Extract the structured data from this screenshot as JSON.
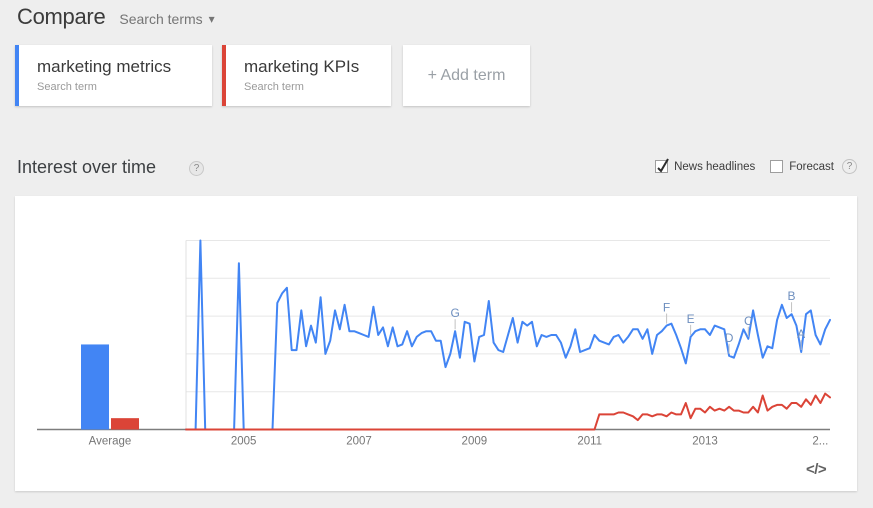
{
  "header": {
    "title": "Compare",
    "dropdown_label": "Search terms",
    "dropdown_arrow": "▾"
  },
  "terms": [
    {
      "label": "marketing metrics",
      "sublabel": "Search term",
      "color": "#4285f4"
    },
    {
      "label": "marketing KPIs",
      "sublabel": "Search term",
      "color": "#db4437"
    }
  ],
  "add_term": {
    "label": "+ Add term"
  },
  "section": {
    "title": "Interest over time",
    "help_icon": "?",
    "checkboxes": [
      {
        "label": "News headlines",
        "checked": true
      },
      {
        "label": "Forecast",
        "checked": false
      }
    ]
  },
  "embed_icon": "</>",
  "chart_data": {
    "type": "line",
    "interval": "monthly",
    "x_start": "2004-01",
    "x_end": "2015-03",
    "ylim": [
      0,
      100
    ],
    "gridline_values": [
      20,
      40,
      60,
      80,
      100
    ],
    "grid_on": true,
    "legend_position": "none",
    "x_tick_labels": [
      "Average",
      "2005",
      "2007",
      "2009",
      "2011",
      "2013",
      "2..."
    ],
    "average_bars": {
      "label": "Average",
      "values": [
        45,
        6
      ]
    },
    "series": [
      {
        "name": "marketing metrics",
        "color": "#4285f4",
        "average": 45,
        "values": [
          0,
          0,
          0,
          100,
          0,
          0,
          0,
          0,
          0,
          0,
          0,
          88,
          0,
          0,
          0,
          0,
          0,
          0,
          0,
          67,
          72,
          75,
          42,
          42,
          63,
          44,
          55,
          46,
          70,
          40,
          47,
          63,
          53,
          66,
          52,
          52,
          51,
          50,
          49,
          65,
          50,
          54,
          44,
          54,
          44,
          45,
          52,
          44,
          49,
          51,
          52,
          52,
          47,
          47,
          33,
          40,
          52,
          38,
          57,
          56,
          36,
          49,
          50,
          68,
          46,
          42,
          41,
          50,
          59,
          46,
          57,
          55,
          57,
          44,
          50,
          49,
          50,
          50,
          46,
          38,
          44,
          53,
          41,
          42,
          43,
          50,
          47,
          46,
          45,
          49,
          50,
          46,
          49,
          53,
          53,
          48,
          53,
          40,
          50,
          52,
          55,
          56,
          50,
          43,
          35,
          49,
          52,
          53,
          53,
          50,
          55,
          54,
          53,
          39,
          38,
          45,
          53,
          48,
          63,
          50,
          38,
          44,
          43,
          58,
          66,
          59,
          61,
          55,
          41,
          61,
          63,
          50,
          45,
          53,
          58
        ]
      },
      {
        "name": "marketing KPIs",
        "color": "#db4437",
        "average": 6,
        "values": [
          0,
          0,
          0,
          0,
          0,
          0,
          0,
          0,
          0,
          0,
          0,
          0,
          0,
          0,
          0,
          0,
          0,
          0,
          0,
          0,
          0,
          0,
          0,
          0,
          0,
          0,
          0,
          0,
          0,
          0,
          0,
          0,
          0,
          0,
          0,
          0,
          0,
          0,
          0,
          0,
          0,
          0,
          0,
          0,
          0,
          0,
          0,
          0,
          0,
          0,
          0,
          0,
          0,
          0,
          0,
          0,
          0,
          0,
          0,
          0,
          0,
          0,
          0,
          0,
          0,
          0,
          0,
          0,
          0,
          0,
          0,
          0,
          0,
          0,
          0,
          0,
          0,
          0,
          0,
          0,
          0,
          0,
          0,
          0,
          0,
          0,
          8,
          8,
          8,
          8,
          9,
          9,
          8,
          7,
          5,
          8,
          8,
          7,
          8,
          8,
          7,
          9,
          8,
          8,
          14,
          6,
          11,
          11,
          9,
          12,
          10,
          11,
          10,
          12,
          10,
          10,
          9,
          9,
          12,
          9,
          18,
          10,
          12,
          13,
          13,
          11,
          14,
          14,
          12,
          16,
          13,
          18,
          14,
          19,
          17
        ]
      }
    ],
    "annotations": [
      {
        "label": "G",
        "series": 0,
        "index": 56
      },
      {
        "label": "F",
        "series": 0,
        "index": 100
      },
      {
        "label": "E",
        "series": 0,
        "index": 105
      },
      {
        "label": "D",
        "series": 0,
        "index": 113
      },
      {
        "label": "C",
        "series": 0,
        "index": 117
      },
      {
        "label": "B",
        "series": 0,
        "index": 126
      },
      {
        "label": "A",
        "series": 0,
        "index": 128
      }
    ]
  }
}
